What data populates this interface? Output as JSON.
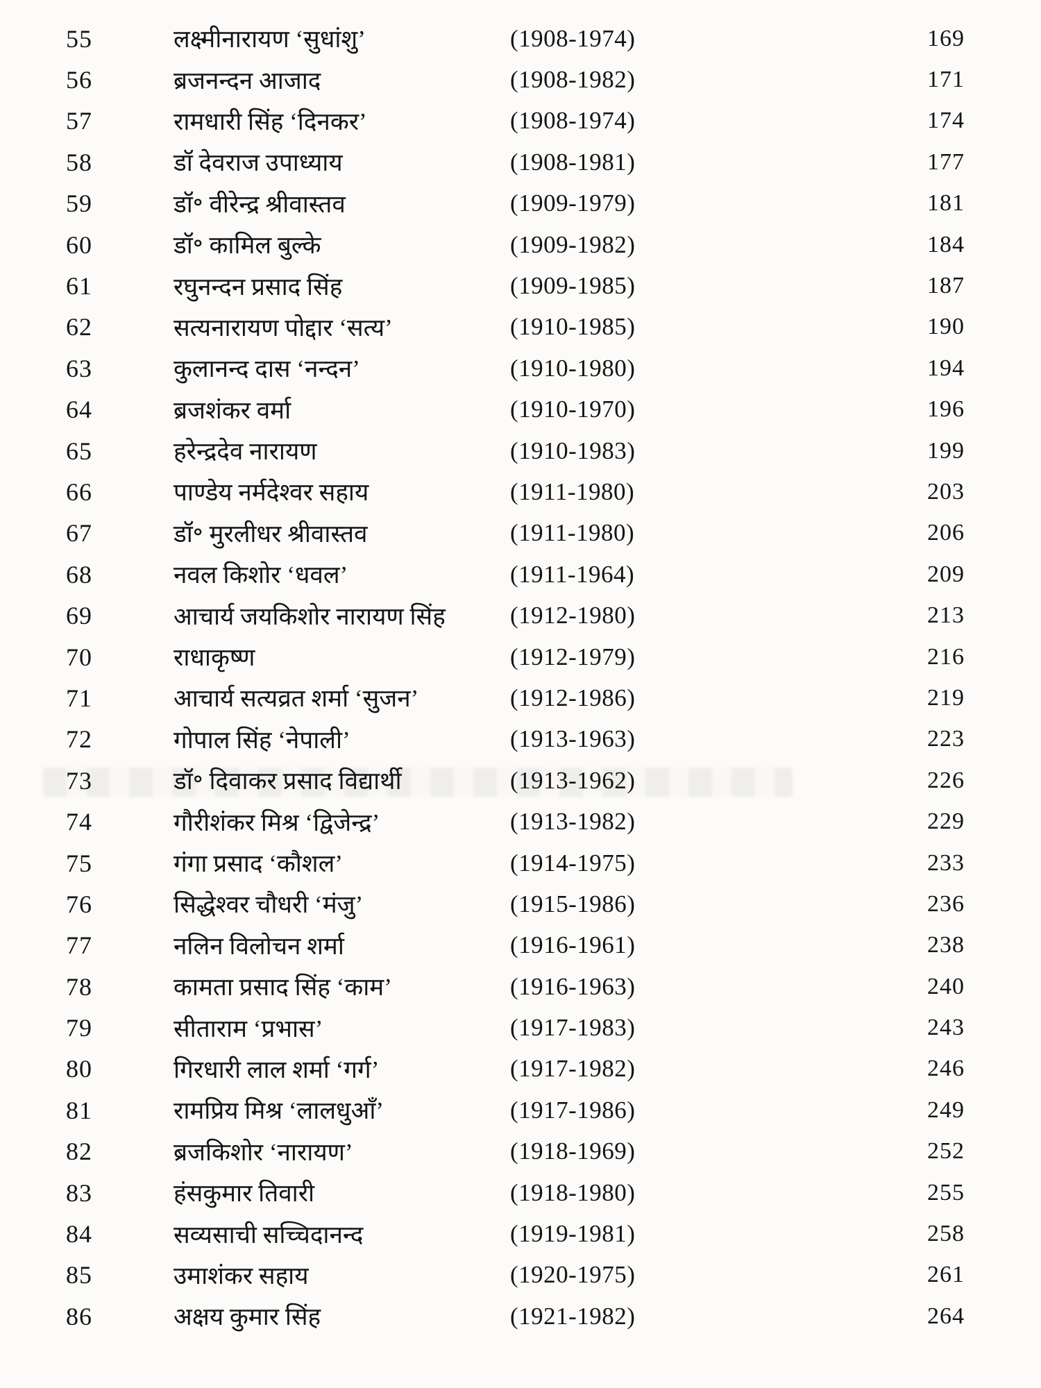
{
  "entries": [
    {
      "number": "55",
      "name": "लक्ष्मीनारायण ‘सुधांशु’",
      "lifespan": "(1908-1974)",
      "page": "169"
    },
    {
      "number": "56",
      "name": "ब्रजनन्दन आजाद",
      "lifespan": "(1908-1982)",
      "page": "171"
    },
    {
      "number": "57",
      "name": "रामधारी सिंह ‘दिनकर’",
      "lifespan": "(1908-1974)",
      "page": "174"
    },
    {
      "number": "58",
      "name": "डॉ देवराज उपाध्याय",
      "lifespan": "(1908-1981)",
      "page": "177"
    },
    {
      "number": "59",
      "name": "डॉ॰ वीरेन्द्र श्रीवास्तव",
      "lifespan": "(1909-1979)",
      "page": "181"
    },
    {
      "number": "60",
      "name": "डॉ॰ कामिल बुल्के",
      "lifespan": "(1909-1982)",
      "page": "184"
    },
    {
      "number": "61",
      "name": "रघुनन्दन प्रसाद सिंह",
      "lifespan": "(1909-1985)",
      "page": "187"
    },
    {
      "number": "62",
      "name": "सत्यनारायण पोद्दार ‘सत्य’",
      "lifespan": "(1910-1985)",
      "page": "190"
    },
    {
      "number": "63",
      "name": "कुलानन्द दास ‘नन्दन’",
      "lifespan": "(1910-1980)",
      "page": "194"
    },
    {
      "number": "64",
      "name": "ब्रजशंकर वर्मा",
      "lifespan": "(1910-1970)",
      "page": "196"
    },
    {
      "number": "65",
      "name": "हरेन्द्रदेव नारायण",
      "lifespan": "(1910-1983)",
      "page": "199"
    },
    {
      "number": "66",
      "name": "पाण्डेय नर्मदेश्वर सहाय",
      "lifespan": "(1911-1980)",
      "page": "203"
    },
    {
      "number": "67",
      "name": "डॉ॰ मुरलीधर श्रीवास्तव",
      "lifespan": "(1911-1980)",
      "page": "206"
    },
    {
      "number": "68",
      "name": "नवल किशोर ‘धवल’",
      "lifespan": "(1911-1964)",
      "page": "209"
    },
    {
      "number": "69",
      "name": "आचार्य जयकिशोर नारायण सिंह",
      "lifespan": "(1912-1980)",
      "page": "213"
    },
    {
      "number": "70",
      "name": "राधाकृष्ण",
      "lifespan": "(1912-1979)",
      "page": "216"
    },
    {
      "number": "71",
      "name": "आचार्य सत्यव्रत शर्मा ‘सुजन’",
      "lifespan": "(1912-1986)",
      "page": "219"
    },
    {
      "number": "72",
      "name": "गोपाल सिंह ‘नेपाली’",
      "lifespan": "(1913-1963)",
      "page": "223"
    },
    {
      "number": "73",
      "name": "डॉ॰ दिवाकर प्रसाद विद्यार्थी",
      "lifespan": "(1913-1962)",
      "page": "226"
    },
    {
      "number": "74",
      "name": "गौरीशंकर मिश्र ‘द्विजेन्द्र’",
      "lifespan": "(1913-1982)",
      "page": "229"
    },
    {
      "number": "75",
      "name": "गंगा प्रसाद ‘कौशल’",
      "lifespan": "(1914-1975)",
      "page": "233"
    },
    {
      "number": "76",
      "name": "सिद्धेश्वर चौधरी ‘मंजु’",
      "lifespan": "(1915-1986)",
      "page": "236"
    },
    {
      "number": "77",
      "name": "नलिन विलोचन शर्मा",
      "lifespan": "(1916-1961)",
      "page": "238"
    },
    {
      "number": "78",
      "name": "कामता प्रसाद सिंह ‘काम’",
      "lifespan": "(1916-1963)",
      "page": "240"
    },
    {
      "number": "79",
      "name": "सीताराम ‘प्रभास’",
      "lifespan": "(1917-1983)",
      "page": "243"
    },
    {
      "number": "80",
      "name": "गिरधारी लाल शर्मा ‘गर्ग’",
      "lifespan": "(1917-1982)",
      "page": "246"
    },
    {
      "number": "81",
      "name": "रामप्रिय मिश्र ‘लालधुआँ’",
      "lifespan": "(1917-1986)",
      "page": "249"
    },
    {
      "number": "82",
      "name": "ब्रजकिशोर ‘नारायण’",
      "lifespan": "(1918-1969)",
      "page": "252"
    },
    {
      "number": "83",
      "name": "हंसकुमार तिवारी",
      "lifespan": "(1918-1980)",
      "page": "255"
    },
    {
      "number": "84",
      "name": "सव्यसाची सच्चिदानन्द",
      "lifespan": "(1919-1981)",
      "page": "258"
    },
    {
      "number": "85",
      "name": "उमाशंकर सहाय",
      "lifespan": "(1920-1975)",
      "page": "261"
    },
    {
      "number": "86",
      "name": "अक्षय कुमार सिंह",
      "lifespan": "(1921-1982)",
      "page": "264"
    }
  ]
}
